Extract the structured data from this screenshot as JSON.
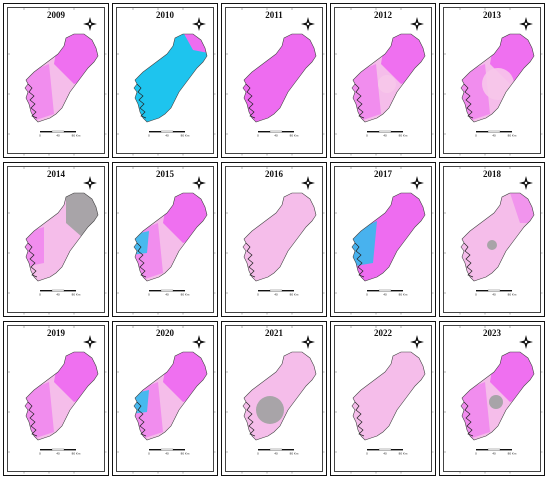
{
  "figure": {
    "scale_labels": [
      "0",
      "40",
      "80 Km"
    ],
    "colors": {
      "light_pink": "#f5bdea",
      "magenta": "#ee6cf0",
      "blue": "#1ec4ee",
      "gray": "#a8a4a8",
      "outline": "#444444"
    },
    "panels": [
      {
        "year": "2009",
        "variant": "pink_ne"
      },
      {
        "year": "2010",
        "variant": "blue"
      },
      {
        "year": "2011",
        "variant": "magenta"
      },
      {
        "year": "2012",
        "variant": "pink_circle"
      },
      {
        "year": "2013",
        "variant": "pink_circle_big"
      },
      {
        "year": "2014",
        "variant": "gray_ne"
      },
      {
        "year": "2015",
        "variant": "mixed"
      },
      {
        "year": "2016",
        "variant": "light"
      },
      {
        "year": "2017",
        "variant": "magenta_blue"
      },
      {
        "year": "2018",
        "variant": "light_dot"
      },
      {
        "year": "2019",
        "variant": "pink_ne"
      },
      {
        "year": "2020",
        "variant": "mixed"
      },
      {
        "year": "2021",
        "variant": "gray_circle"
      },
      {
        "year": "2022",
        "variant": "light"
      },
      {
        "year": "2023",
        "variant": "gray_dot"
      }
    ]
  }
}
